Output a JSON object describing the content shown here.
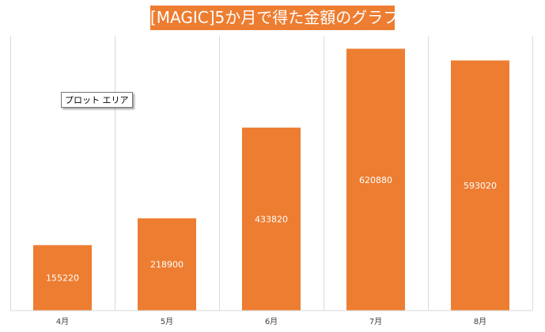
{
  "chart_data": {
    "type": "bar",
    "title": "[MAGIC]5か月で得た金額のグラフ",
    "categories": [
      "4月",
      "5月",
      "6月",
      "7月",
      "8月"
    ],
    "series": [
      {
        "values": [
          155220,
          218900,
          433820,
          620880,
          593020
        ]
      }
    ],
    "data_labels": [
      "155220",
      "218900",
      "433820",
      "620880",
      "593020"
    ],
    "ylim": [
      0,
      650000
    ],
    "grid": "vertical",
    "bar_color": "#ED7D31",
    "title_background": "#ED7D31"
  },
  "tooltip": {
    "text": "プロット エリア"
  }
}
